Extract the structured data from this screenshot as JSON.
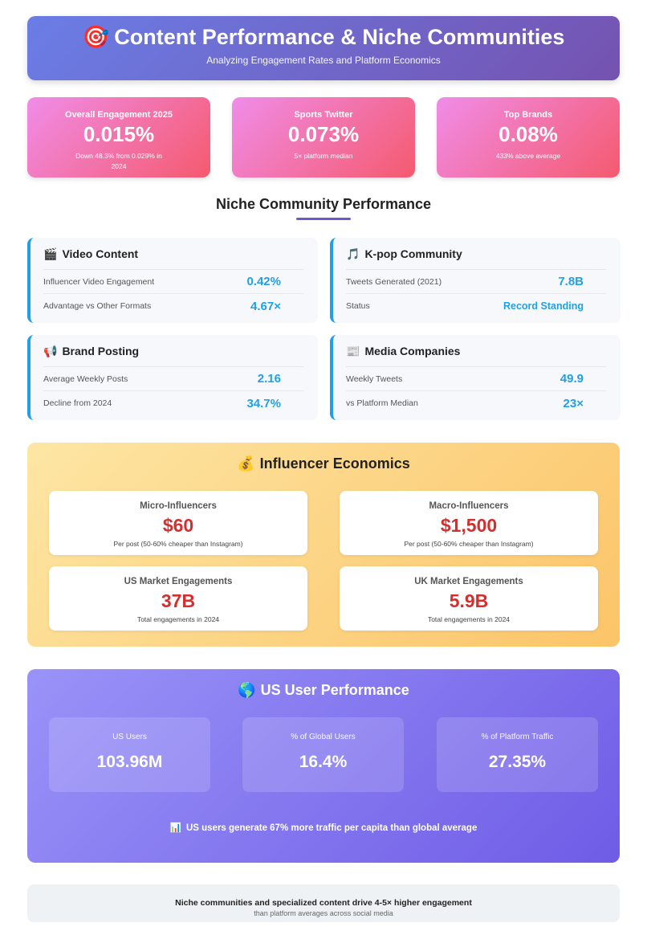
{
  "header": {
    "icon": "target-icon",
    "title": "Content Performance & Niche Communities",
    "subtitle": "Analyzing Engagement Rates and Platform Economics"
  },
  "stats": [
    {
      "label": "Overall Engagement 2025",
      "value": "0.015%",
      "note": "Down 48.3% from 0.029% in 2024"
    },
    {
      "label": "Sports Twitter",
      "value": "0.073%",
      "note": "5× platform median"
    },
    {
      "label": "Top Brands",
      "value": "0.08%",
      "note": "433% above average"
    }
  ],
  "niche": {
    "title": "Niche Community Performance",
    "cards": [
      {
        "icon": "clapper-icon",
        "emoji": "🎬",
        "title": "Video Content",
        "rows": [
          {
            "label": "Influencer Video Engagement",
            "value": "0.42%"
          },
          {
            "label": "Advantage vs Other Formats",
            "value": "4.67×"
          }
        ]
      },
      {
        "icon": "music-note-icon",
        "emoji": "🎵",
        "title": "K-pop Community",
        "rows": [
          {
            "label": "Tweets Generated (2021)",
            "value": "7.8B"
          },
          {
            "label": "Status",
            "value": "Record Standing"
          }
        ]
      },
      {
        "icon": "megaphone-icon",
        "emoji": "📢",
        "title": "Brand Posting",
        "rows": [
          {
            "label": "Average Weekly Posts",
            "value": "2.16"
          },
          {
            "label": "Decline from 2024",
            "value": "34.7%"
          }
        ]
      },
      {
        "icon": "newspaper-icon",
        "emoji": "📰",
        "title": "Media Companies",
        "rows": [
          {
            "label": "Weekly Tweets",
            "value": "49.9"
          },
          {
            "label": "vs Platform Median",
            "value": "23×"
          }
        ]
      }
    ]
  },
  "economics": {
    "icon": "money-bag-icon",
    "emoji": "💰",
    "title": "Influencer Economics",
    "cards": [
      {
        "label": "Micro-Influencers",
        "value": "$60",
        "note": "Per post (50-60% cheaper than Instagram)"
      },
      {
        "label": "Macro-Influencers",
        "value": "$1,500",
        "note": "Per post (50-60% cheaper than Instagram)"
      },
      {
        "label": "US Market Engagements",
        "value": "37B",
        "note": "Total engagements in 2024"
      },
      {
        "label": "UK Market Engagements",
        "value": "5.9B",
        "note": "Total engagements in 2024"
      }
    ]
  },
  "us": {
    "icon": "globe-icon",
    "emoji": "🌎",
    "title": "US User Performance",
    "cards": [
      {
        "label": "US Users",
        "value": "103.96M"
      },
      {
        "label": "% of Global Users",
        "value": "16.4%"
      },
      {
        "label": "% of Platform Traffic",
        "value": "27.35%"
      }
    ],
    "note_icon": "bar-chart-icon",
    "note_emoji": "📊",
    "note": "US users generate 67% more traffic per capita than global average"
  },
  "footer": {
    "line1": "Niche communities and specialized content drive 4-5× higher engagement",
    "line2": "than platform averages across social media"
  },
  "colors": {
    "accent": "#1fa0e8",
    "value_red": "#d32f2f",
    "header_start": "#6a7ee6",
    "header_end": "#7552b0"
  }
}
